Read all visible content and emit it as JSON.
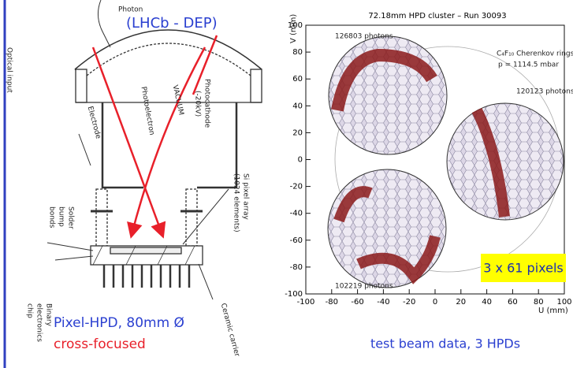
{
  "left": {
    "title": "(LHCb - DEP)",
    "labels": {
      "photon": "Photon",
      "optical_input": "Optical input",
      "photoelectron": "Photoelectron",
      "vacuum": "VACUUM",
      "photocathode": "Photocathode",
      "photocathode_voltage": "(-20kV)",
      "electrode": "Electrode",
      "solder": "Solder",
      "bump": "bump",
      "bonds": "bonds",
      "si_array": "Si pixel array",
      "si_elements": "(1024 elements)",
      "binary": "Binary",
      "electronics": "electronics",
      "chip": "chip",
      "ceramic": "Ceramic carrier"
    },
    "caption": "Pixel-HPD, 80mm Ø",
    "subcaption": "cross-focused"
  },
  "right": {
    "title": "72.18mm HPD cluster – Run 30093",
    "ylabel": "V (mm)",
    "xlabel": "U (mm)",
    "xlim": [
      -100,
      100
    ],
    "ylim": [
      -100,
      100
    ],
    "xticks": [
      -100,
      -80,
      -60,
      -40,
      -20,
      0,
      20,
      40,
      60,
      80,
      100
    ],
    "yticks": [
      -100,
      -80,
      -60,
      -40,
      -20,
      0,
      20,
      40,
      60,
      80,
      100
    ],
    "annotations": [
      "126803 photons",
      "120123 photons",
      "102219 photons"
    ],
    "gas": "C₄F₁₀ Cherenkov rings",
    "pressure": "p = 1114.5 mbar",
    "badge": "3 x 61 pixels",
    "caption": "test beam data, 3 HPDs"
  }
}
